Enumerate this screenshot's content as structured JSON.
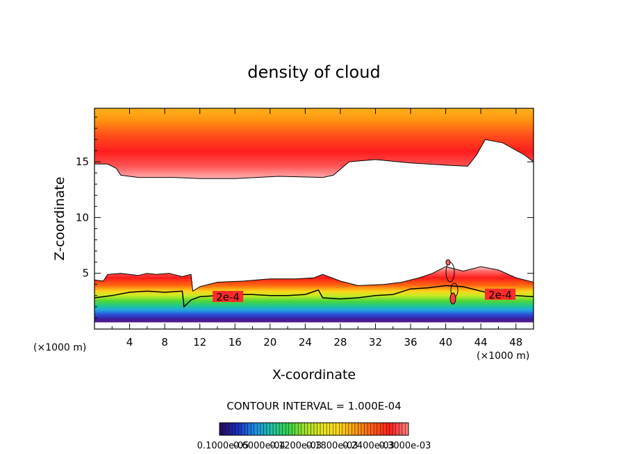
{
  "chart_data": {
    "type": "contour",
    "title": "density of cloud",
    "xlabel": "X-coordinate",
    "ylabel": "Z-coordinate",
    "x_unit": "(×1000 m)",
    "z_unit": "(×1000 m)",
    "xlim": [
      0,
      50
    ],
    "ylim": [
      0,
      19.8
    ],
    "x_ticks": [
      4,
      8,
      12,
      16,
      20,
      24,
      28,
      32,
      36,
      40,
      44,
      48
    ],
    "y_ticks": [
      5,
      10,
      15
    ],
    "contour_interval": "CONTOUR INTERVAL = 1.000E-04",
    "contour_line_label": "2e-4",
    "contour_line_label_positions": [
      [
        15.2,
        2.8
      ],
      [
        46.2,
        3.0
      ]
    ],
    "colorbar_labels": [
      "0.1000e-05",
      "0.6000e-04",
      "0.1200e-03",
      "0.1800e-03",
      "0.2400e-03",
      "0.3000e-03"
    ],
    "colorbar_colors": [
      "#2a0d5e",
      "#1a2fbf",
      "#1d8fe8",
      "#22c4a5",
      "#37d24a",
      "#a6e22a",
      "#e8e620",
      "#fbd51c",
      "#ff9a12",
      "#ff5a14",
      "#ff1d1d",
      "#ff7f7f"
    ],
    "upper_layer": {
      "top": 19.8,
      "base": [
        [
          0,
          14.8
        ],
        [
          1.5,
          14.8
        ],
        [
          2.5,
          14.4
        ],
        [
          3,
          13.8
        ],
        [
          5,
          13.6
        ],
        [
          9,
          13.6
        ],
        [
          12,
          13.5
        ],
        [
          16,
          13.5
        ],
        [
          21,
          13.7
        ],
        [
          26,
          13.6
        ],
        [
          27.2,
          13.8
        ],
        [
          29,
          15.0
        ],
        [
          32,
          15.2
        ],
        [
          36,
          14.9
        ],
        [
          40,
          14.7
        ],
        [
          42.5,
          14.6
        ],
        [
          43.5,
          15.6
        ],
        [
          44.5,
          17.0
        ],
        [
          46.5,
          16.7
        ],
        [
          49,
          15.6
        ],
        [
          50,
          15.0
        ]
      ]
    },
    "lower_layer": {
      "bottom": 0.6,
      "top": [
        [
          0,
          4.4
        ],
        [
          1,
          4.3
        ],
        [
          1.5,
          4.9
        ],
        [
          3,
          5.0
        ],
        [
          5,
          4.8
        ],
        [
          6,
          5.0
        ],
        [
          7,
          4.9
        ],
        [
          8.5,
          5.0
        ],
        [
          10,
          4.7
        ],
        [
          11,
          4.9
        ],
        [
          11.2,
          3.4
        ],
        [
          12,
          3.8
        ],
        [
          14,
          4.2
        ],
        [
          17,
          4.3
        ],
        [
          20,
          4.5
        ],
        [
          23,
          4.5
        ],
        [
          25,
          4.6
        ],
        [
          26,
          4.9
        ],
        [
          28,
          4.3
        ],
        [
          30,
          3.9
        ],
        [
          33,
          4.0
        ],
        [
          35,
          4.2
        ],
        [
          37,
          4.6
        ],
        [
          38.5,
          5.0
        ],
        [
          40,
          5.6
        ],
        [
          42,
          5.2
        ],
        [
          44,
          5.6
        ],
        [
          46,
          5.3
        ],
        [
          48,
          4.6
        ],
        [
          50,
          4.2
        ]
      ],
      "contour_2e4": [
        [
          0,
          2.8
        ],
        [
          2,
          3.0
        ],
        [
          4,
          3.3
        ],
        [
          6,
          3.4
        ],
        [
          8,
          3.3
        ],
        [
          10,
          3.4
        ],
        [
          10.2,
          2.0
        ],
        [
          11,
          2.6
        ],
        [
          12,
          2.9
        ],
        [
          14,
          3.0
        ],
        [
          16,
          3.1
        ],
        [
          18,
          3.1
        ],
        [
          20,
          3.0
        ],
        [
          22,
          3.0
        ],
        [
          24,
          3.1
        ],
        [
          25.5,
          3.5
        ],
        [
          26,
          2.8
        ],
        [
          28,
          2.7
        ],
        [
          30,
          2.8
        ],
        [
          32,
          3.0
        ],
        [
          34,
          3.1
        ],
        [
          36,
          3.6
        ],
        [
          38,
          3.7
        ],
        [
          40,
          3.9
        ],
        [
          42,
          3.8
        ],
        [
          44,
          3.4
        ],
        [
          46,
          3.1
        ],
        [
          48,
          3.0
        ],
        [
          50,
          2.9
        ]
      ]
    }
  }
}
